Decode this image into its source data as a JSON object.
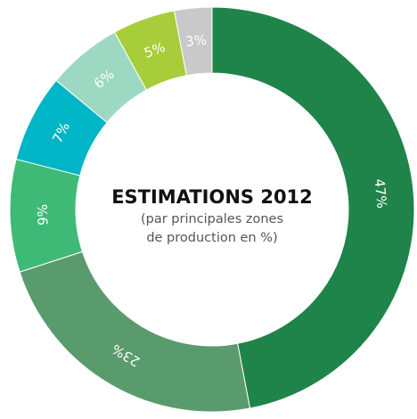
{
  "chart_data": {
    "type": "pie",
    "title": "ESTIMATIONS 2012",
    "subtitle_lines": [
      "(par principales zones",
      "de production en %)"
    ],
    "slices": [
      {
        "value": 47,
        "label": "47%",
        "color": "#1f8449"
      },
      {
        "value": 23,
        "label": "23%",
        "color": "#5a9b6e"
      },
      {
        "value": 9,
        "label": "9%",
        "color": "#3fba76"
      },
      {
        "value": 7,
        "label": "7%",
        "color": "#00b5c5"
      },
      {
        "value": 6,
        "label": "6%",
        "color": "#9dd8c2"
      },
      {
        "value": 5,
        "label": "5%",
        "color": "#a8cd3a"
      },
      {
        "value": 3,
        "label": "3%",
        "color": "#c9c9c9"
      }
    ]
  }
}
